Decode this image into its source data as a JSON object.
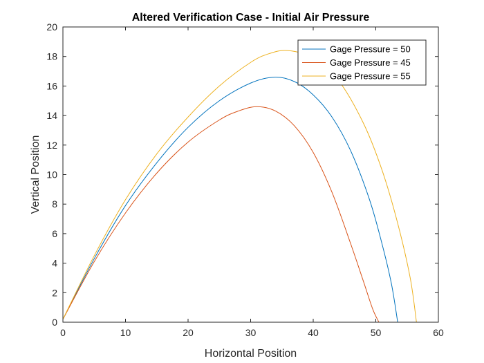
{
  "chart_data": {
    "type": "line",
    "title": "Altered Verification Case - Initial Air Pressure",
    "xlabel": "Horizontal Position",
    "ylabel": "Vertical Position",
    "xlim": [
      0,
      60
    ],
    "ylim": [
      0,
      20
    ],
    "xticks": [
      0,
      10,
      20,
      30,
      40,
      50,
      60
    ],
    "yticks": [
      0,
      2,
      4,
      6,
      8,
      10,
      12,
      14,
      16,
      18,
      20
    ],
    "grid": false,
    "legend_position": "top-right",
    "series": [
      {
        "name": "Gage Pressure = 50",
        "color": "#0072BD",
        "x": [
          0,
          5,
          10,
          15,
          20,
          25,
          30,
          33.8,
          37,
          40,
          43,
          46,
          49,
          51,
          52.5,
          53.5
        ],
        "y": [
          0.2,
          4.3,
          7.9,
          10.8,
          13.2,
          15.0,
          16.2,
          16.6,
          16.3,
          15.4,
          13.9,
          11.6,
          8.3,
          5.3,
          2.6,
          0
        ]
      },
      {
        "name": "Gage Pressure = 45",
        "color": "#D95319",
        "x": [
          0,
          5,
          10,
          15,
          20,
          25,
          28,
          31,
          34,
          37,
          40,
          43,
          46,
          48,
          49.5,
          50.5
        ],
        "y": [
          0.2,
          4.1,
          7.4,
          10.1,
          12.2,
          13.7,
          14.3,
          14.6,
          14.3,
          13.3,
          11.5,
          8.8,
          5.3,
          2.8,
          0.9,
          0
        ]
      },
      {
        "name": "Gage Pressure = 55",
        "color": "#EDB120",
        "x": [
          0,
          5,
          10,
          15,
          20,
          25,
          30,
          33,
          36,
          40,
          44,
          48,
          51,
          53.5,
          55.5,
          56.5
        ],
        "y": [
          0.2,
          4.5,
          8.3,
          11.4,
          13.9,
          16.0,
          17.6,
          18.2,
          18.4,
          17.9,
          16.4,
          13.5,
          10.3,
          6.7,
          3.0,
          0
        ]
      }
    ]
  }
}
